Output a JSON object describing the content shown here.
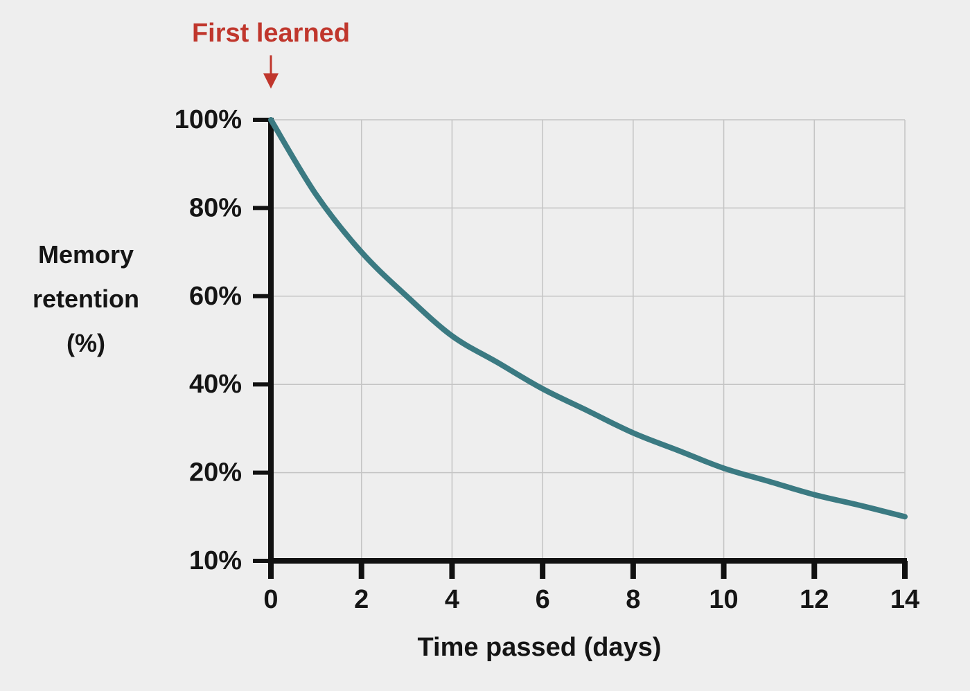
{
  "chart_data": {
    "type": "line",
    "xlabel": "Time passed (days)",
    "ylabel": "Memory retention (%)",
    "annotations": [
      {
        "text": "First learned",
        "x": 0,
        "color": "#c0362c"
      }
    ],
    "x": [
      0,
      1,
      2,
      3,
      4,
      5,
      6,
      7,
      8,
      9,
      10,
      11,
      12,
      13,
      14
    ],
    "series": [
      {
        "name": "Memory retention",
        "color": "#3b7a82",
        "values": [
          100,
          83,
          70,
          60,
          51,
          45,
          39,
          34,
          29,
          25,
          21,
          19,
          17.5,
          16.3,
          15
        ]
      }
    ],
    "xlim": [
      0,
      14
    ],
    "xticks": [
      0,
      2,
      4,
      6,
      8,
      10,
      12,
      14
    ],
    "ylim": [
      10,
      100
    ],
    "yticks": [
      {
        "value": 100,
        "label": "100%"
      },
      {
        "value": 80,
        "label": "80%"
      },
      {
        "value": 60,
        "label": "60%"
      },
      {
        "value": 40,
        "label": "40%"
      },
      {
        "value": 20,
        "label": "20%"
      },
      {
        "value": 10,
        "label": "10%"
      }
    ],
    "grid": true
  }
}
